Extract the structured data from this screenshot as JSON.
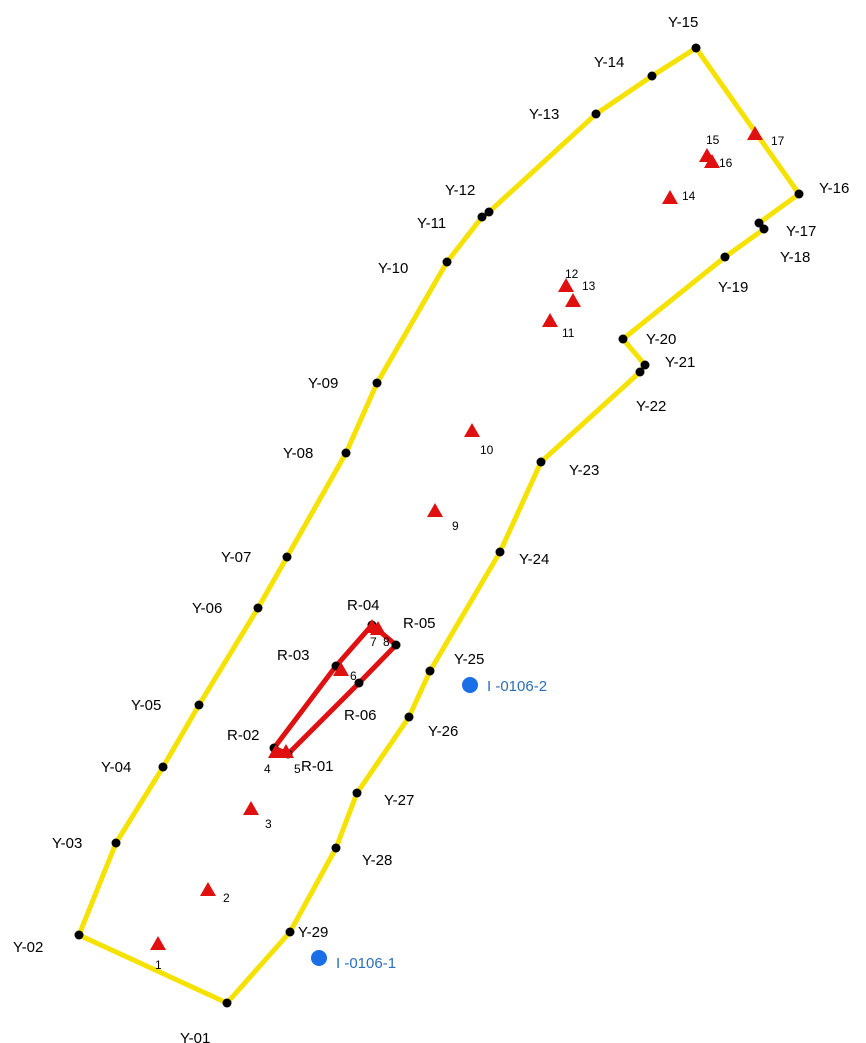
{
  "colors": {
    "boundary": "#f5e200",
    "inner_boundary": "#e01010",
    "vertex": "#000000",
    "marker": "#e01010",
    "well": "#1a6fe6",
    "well_text": "#2a6fb8"
  },
  "boundary_points": [
    "Y-01",
    "Y-02",
    "Y-03",
    "Y-04",
    "Y-05",
    "Y-06",
    "Y-07",
    "Y-08",
    "Y-09",
    "Y-10",
    "Y-11",
    "Y-12",
    "Y-13",
    "Y-14",
    "Y-15",
    "Y-16",
    "Y-17",
    "Y-18",
    "Y-19",
    "Y-20",
    "Y-21",
    "Y-22",
    "Y-23",
    "Y-24",
    "Y-25",
    "Y-26",
    "Y-27",
    "Y-28",
    "Y-29"
  ],
  "inner_points": [
    "R-01",
    "R-02",
    "R-03",
    "R-04",
    "R-05",
    "R-06"
  ],
  "markers": [
    "1",
    "2",
    "3",
    "4",
    "5",
    "6",
    "7",
    "8",
    "9",
    "10",
    "11",
    "12",
    "13",
    "14",
    "15",
    "16",
    "17"
  ],
  "wells": [
    "I -0106-1",
    "I -0106-2"
  ],
  "icons": {
    "vertex": "black-dot-icon",
    "marker": "red-triangle-icon",
    "well": "blue-circle-icon"
  }
}
